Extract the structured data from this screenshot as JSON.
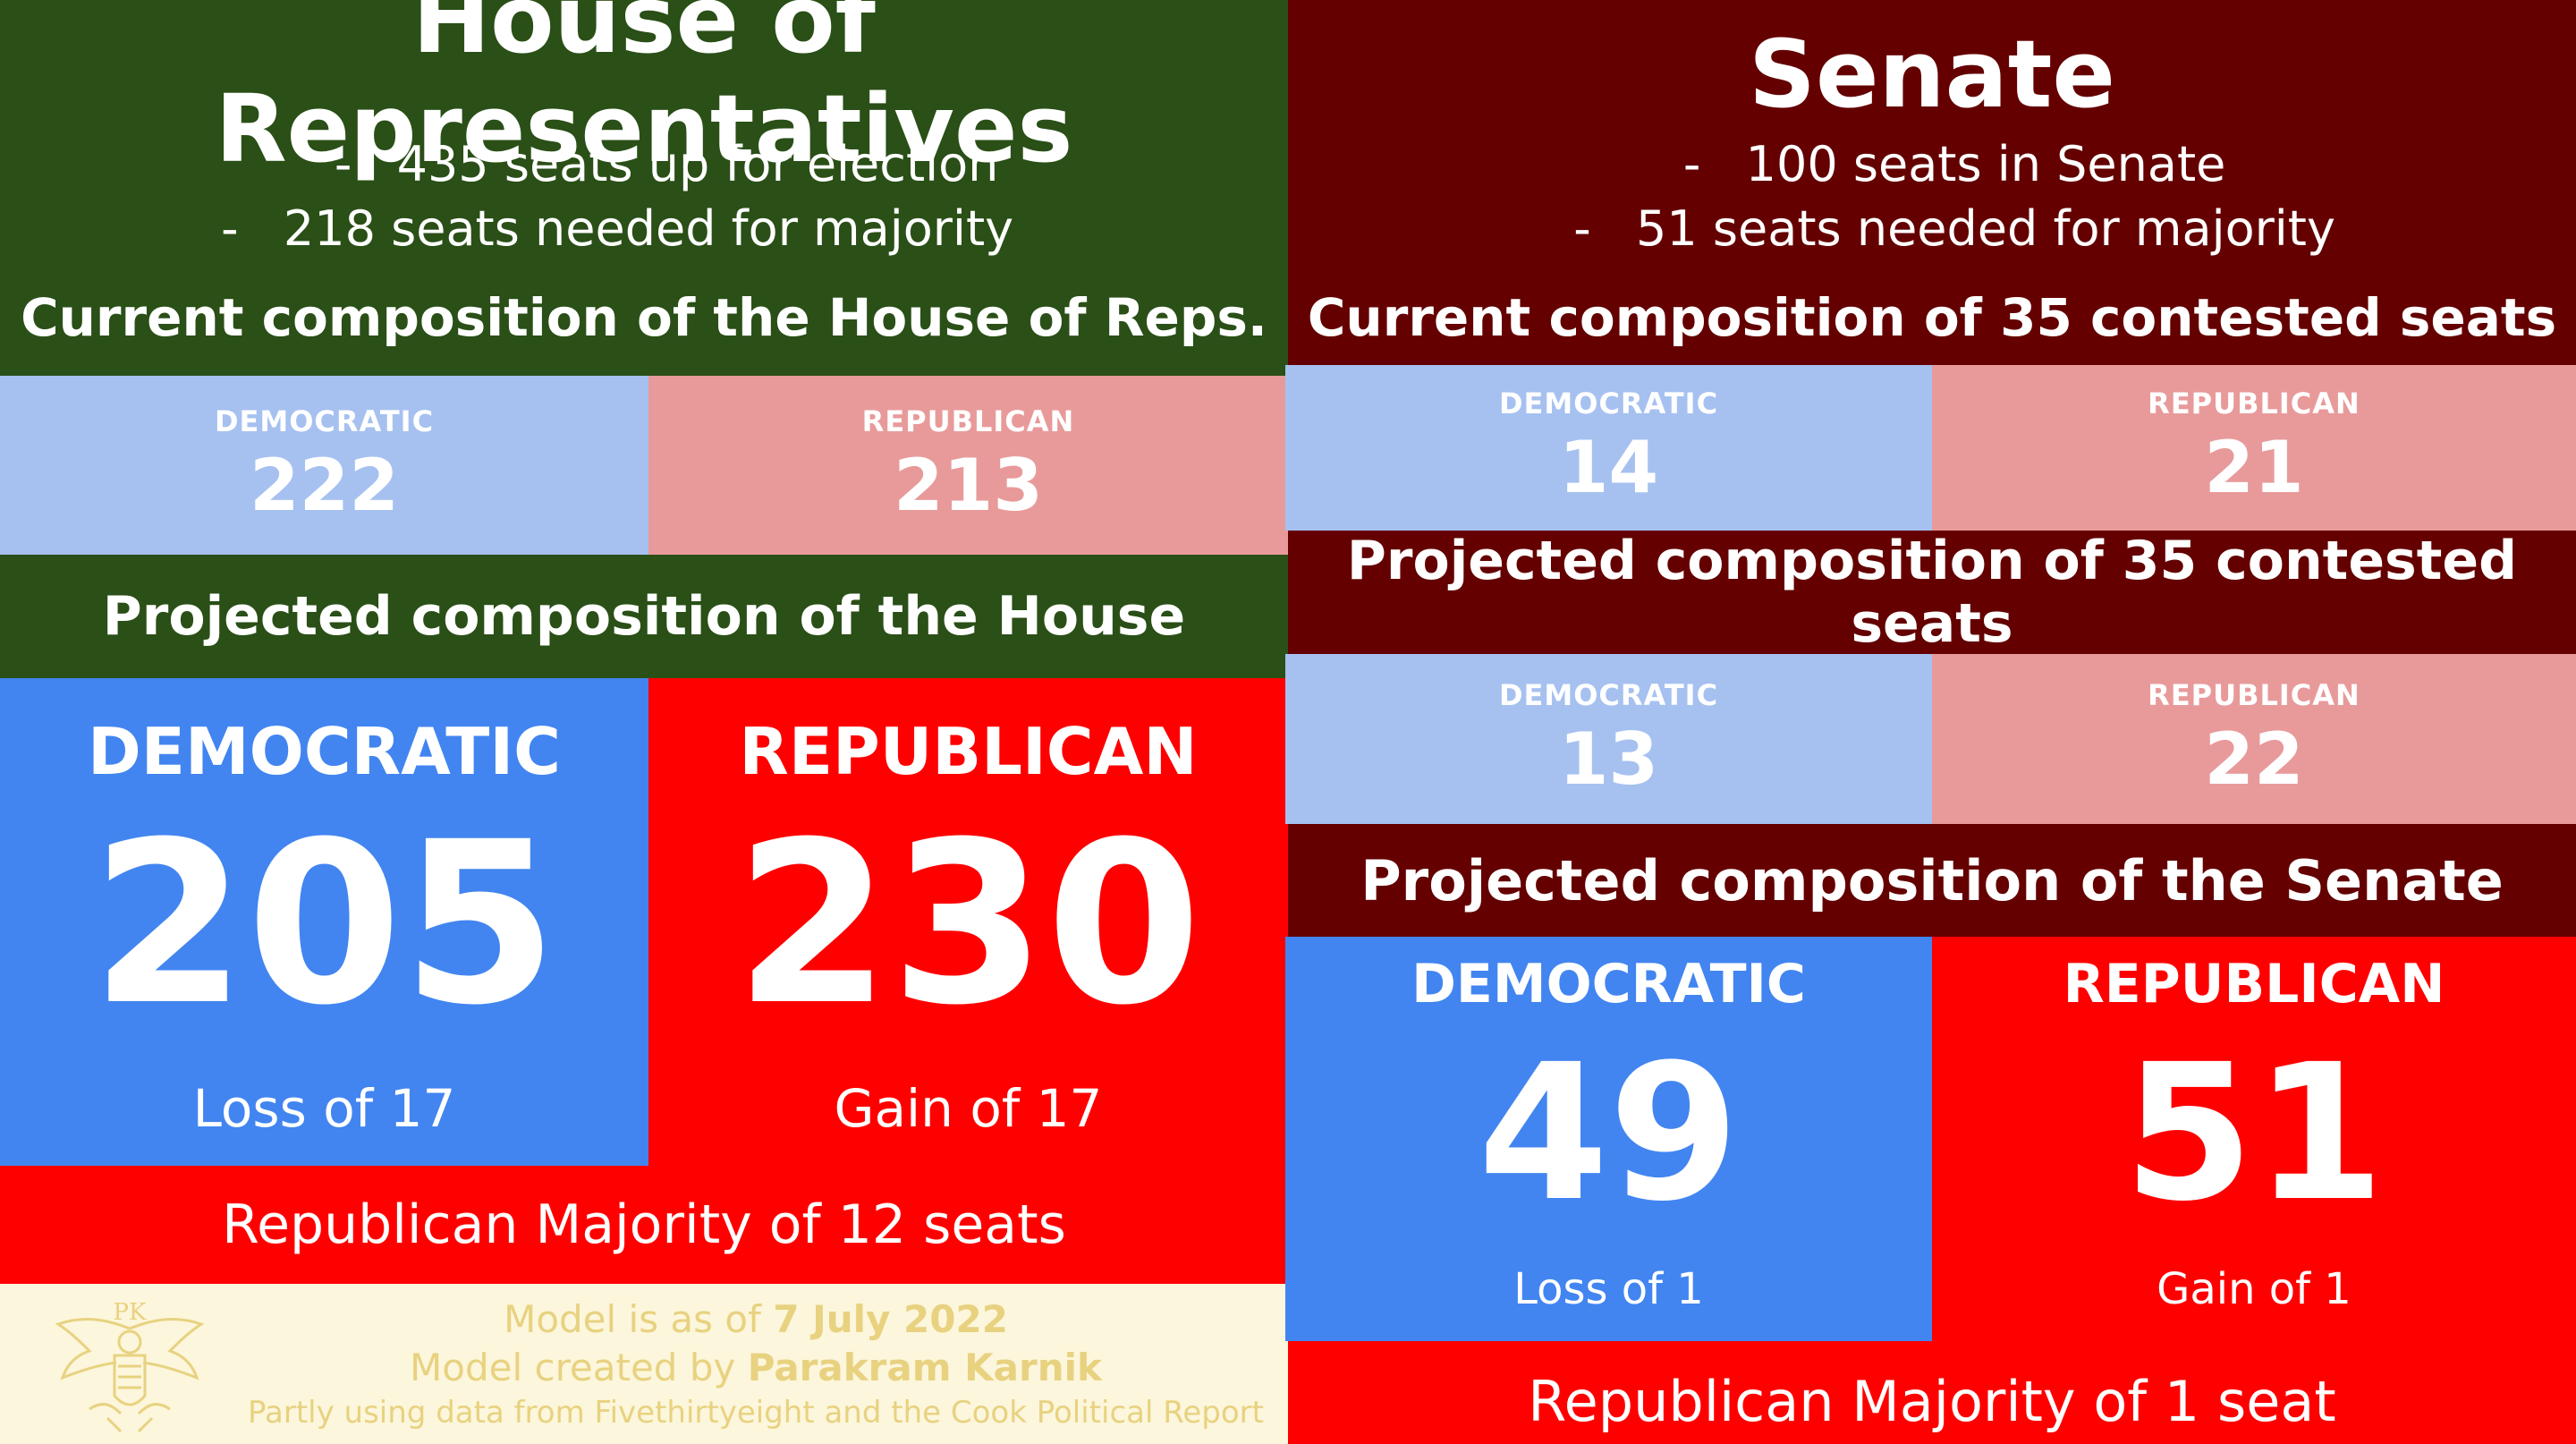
{
  "house": {
    "title": "House of Representatives",
    "bullets": [
      "435 seats up for election",
      "218 seats needed for majority"
    ],
    "current_title": "Current composition of the House of Reps.",
    "current": {
      "dem_label": "DEMOCRATIC",
      "dem_value": "222",
      "rep_label": "REPUBLICAN",
      "rep_value": "213"
    },
    "projected_title": "Projected composition of the House",
    "projected": {
      "dem_label": "DEMOCRATIC",
      "dem_value": "205",
      "dem_change": "Loss of 17",
      "rep_label": "REPUBLICAN",
      "rep_value": "230",
      "rep_change": "Gain of 17"
    },
    "majority": "Republican Majority of 12 seats"
  },
  "footer": {
    "seal_text": "PK",
    "line1_prefix": "Model is as of ",
    "line1_date": "7 July 2022",
    "line2_prefix": "Model created by ",
    "line2_author": "Parakram Karnik",
    "line3": "Partly using data from Fivethirtyeight and the Cook Political Report"
  },
  "senate": {
    "title": "Senate",
    "bullets": [
      "100 seats in Senate",
      "51 seats needed for majority"
    ],
    "current_title": "Current composition of 35 contested seats",
    "current": {
      "dem_label": "DEMOCRATIC",
      "dem_value": "14",
      "rep_label": "REPUBLICAN",
      "rep_value": "21"
    },
    "contested_title": "Projected composition of 35 contested seats",
    "contested": {
      "dem_label": "DEMOCRATIC",
      "dem_value": "13",
      "rep_label": "REPUBLICAN",
      "rep_value": "22"
    },
    "projected_title": "Projected composition of the Senate",
    "projected": {
      "dem_label": "DEMOCRATIC",
      "dem_value": "49",
      "dem_change": "Loss of 1",
      "rep_label": "REPUBLICAN",
      "rep_value": "51",
      "rep_change": "Gain of 1"
    },
    "majority": "Republican Majority of 1 seat"
  },
  "colors": {
    "house_green": "#2a4f17",
    "senate_maroon": "#640000",
    "dem_light": "#a6c1f0",
    "rep_light": "#e89a9a",
    "dem_blue": "#4285f0",
    "rep_red": "#ff0000",
    "footer_bg": "#fcf6dc",
    "footer_text": "#e8d280"
  }
}
